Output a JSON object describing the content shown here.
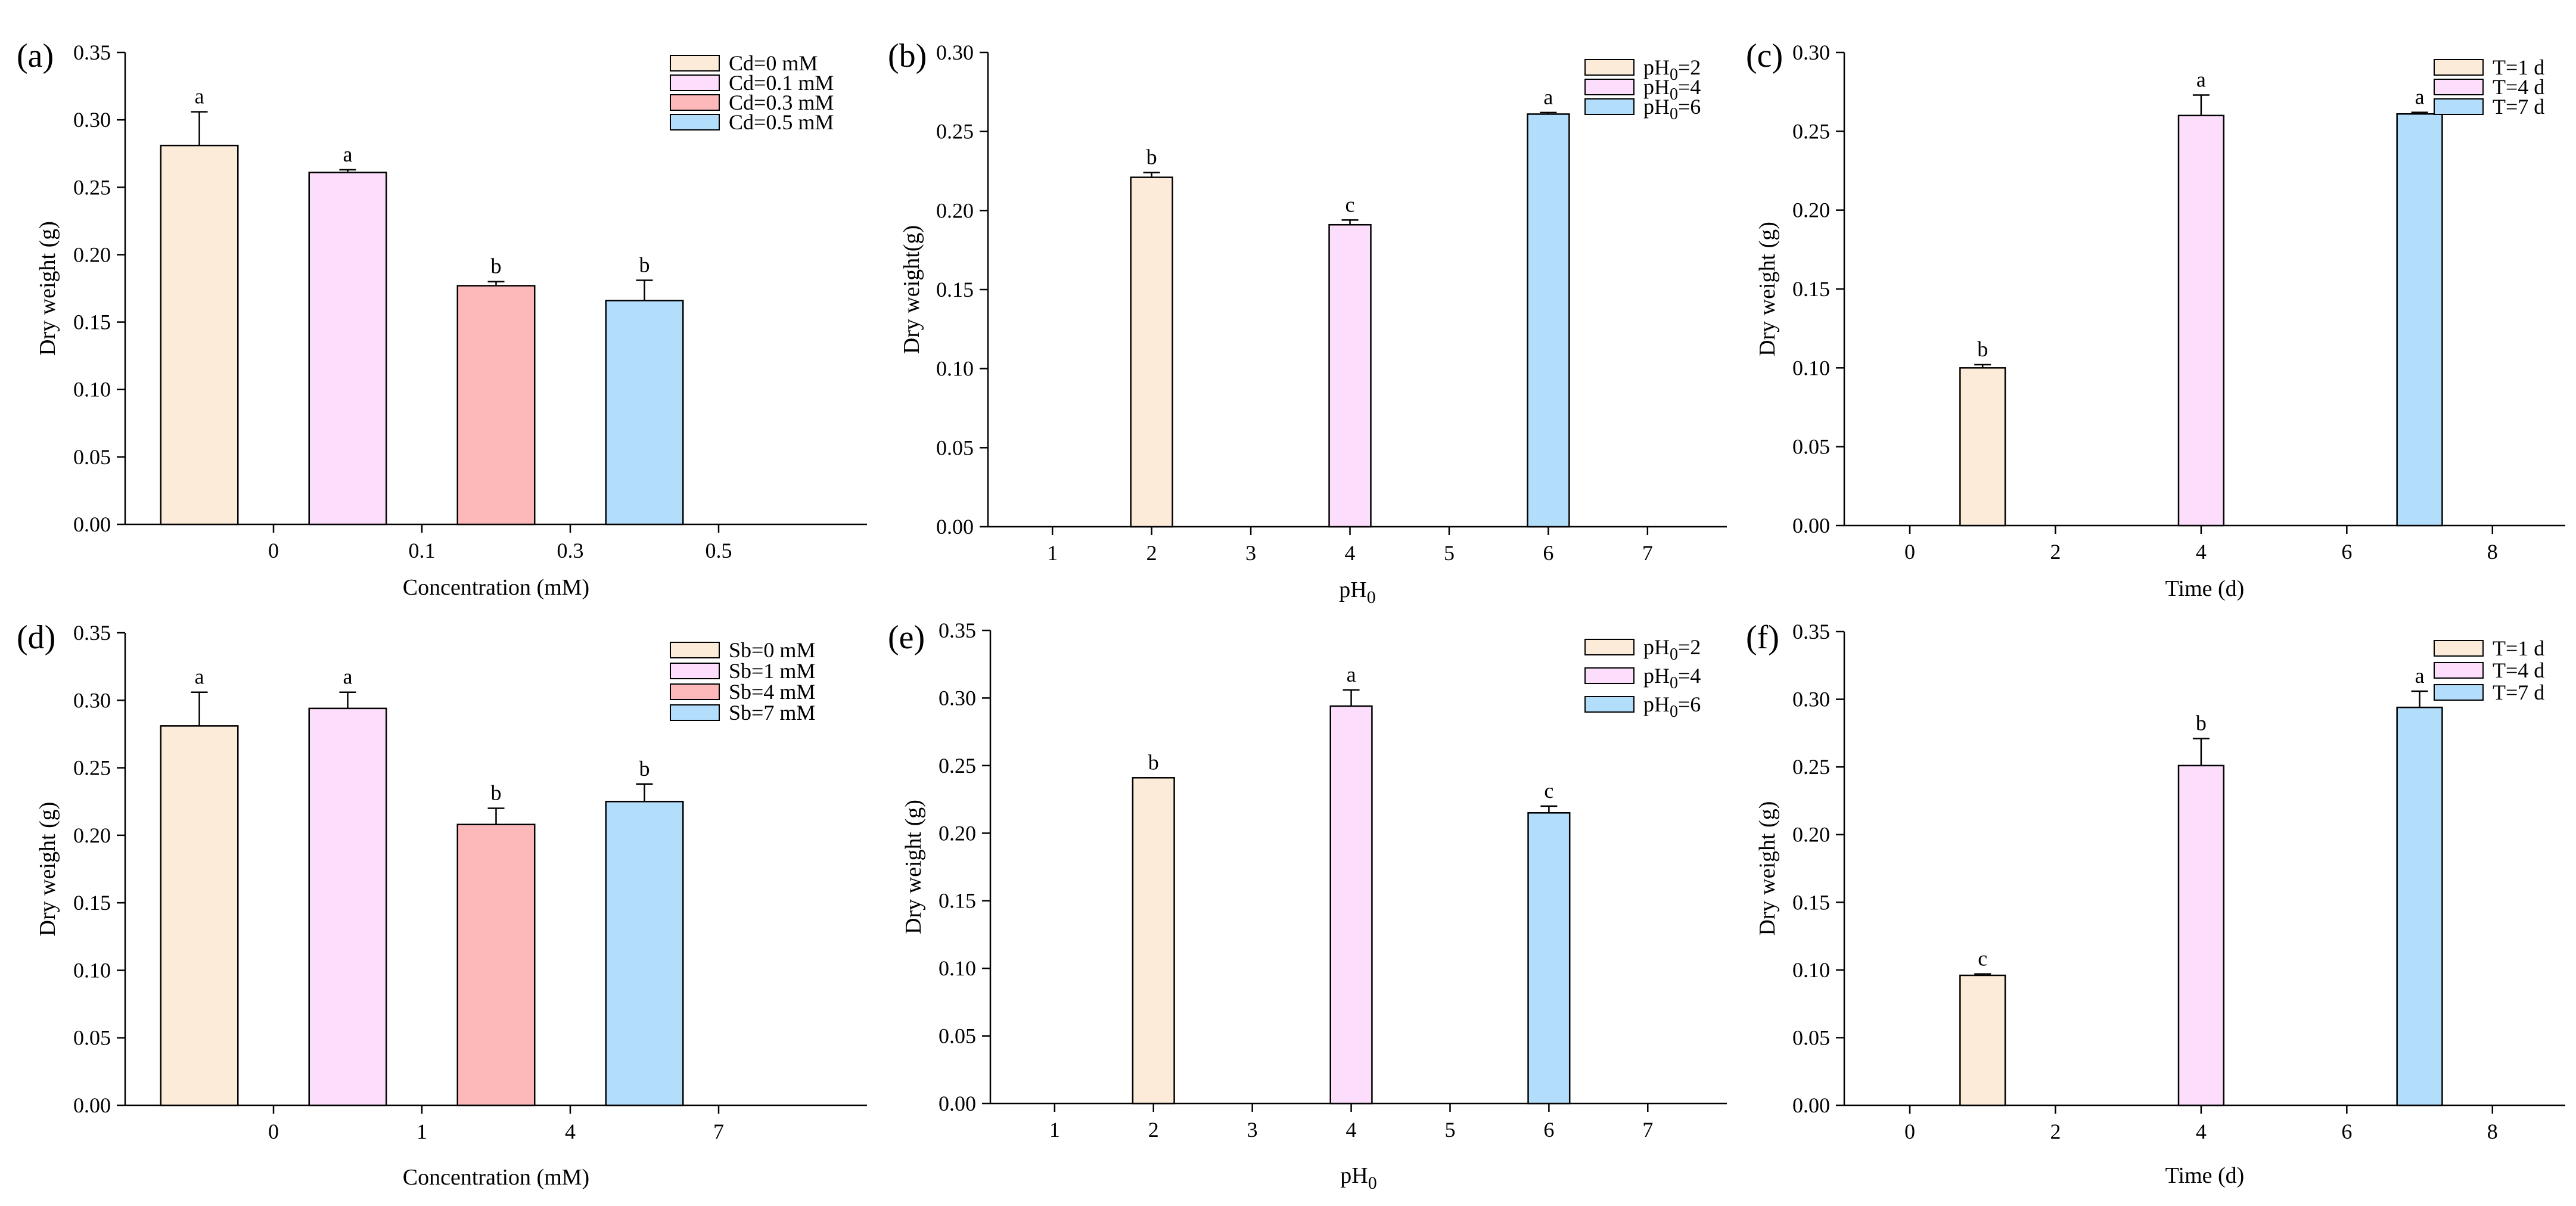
{
  "figure": {
    "description_free": true
  },
  "chart_data": [
    {
      "panel": "(a)",
      "type": "bar",
      "xlabel": "Concentration (mM)",
      "ylabel": "Dry weight (g)",
      "ylim": [
        0,
        0.35
      ],
      "yticks": [
        "0.00",
        "0.05",
        "0.10",
        "0.15",
        "0.20",
        "0.25",
        "0.30",
        "0.35"
      ],
      "x_scale": "categorical",
      "xticks": [
        {
          "label": "0",
          "pos": 0.5
        },
        {
          "label": "0.1",
          "pos": 1.5
        },
        {
          "label": "0.3",
          "pos": 2.5
        },
        {
          "label": "0.5",
          "pos": 3.5
        }
      ],
      "xlim": [
        -0.5,
        4.5
      ],
      "bars": [
        {
          "series": "Cd=0 mM",
          "pos": 0,
          "value": 0.281,
          "error": 0.025,
          "sig": "a",
          "color": "#FDEBD9"
        },
        {
          "series": "Cd=0.1 mM",
          "pos": 1,
          "value": 0.261,
          "error": 0.002,
          "sig": "a",
          "color": "#FCDDFC"
        },
        {
          "series": "Cd=0.3 mM",
          "pos": 2,
          "value": 0.177,
          "error": 0.003,
          "sig": "b",
          "color": "#FDB9B9"
        },
        {
          "series": "Cd=0.5 mM",
          "pos": 3,
          "value": 0.166,
          "error": 0.015,
          "sig": "b",
          "color": "#B2DDFB"
        }
      ],
      "legend": [
        {
          "pre": "Cd=0 mM",
          "sub": "",
          "post": "",
          "color": "#FDEBD9"
        },
        {
          "pre": "Cd=0.1 mM",
          "sub": "",
          "post": "",
          "color": "#FCDDFC"
        },
        {
          "pre": "Cd=0.3 mM",
          "sub": "",
          "post": "",
          "color": "#FDB9B9"
        },
        {
          "pre": "Cd=0.5 mM",
          "sub": "",
          "post": "",
          "color": "#B2DDFB"
        }
      ]
    },
    {
      "panel": "(b)",
      "type": "bar",
      "xlabel": "pH",
      "xlabel_sub": "0",
      "ylabel": "Dry weight(g)",
      "ylim": [
        0,
        0.3
      ],
      "yticks": [
        "0.00",
        "0.05",
        "0.10",
        "0.15",
        "0.20",
        "0.25",
        "0.30"
      ],
      "x_scale": "linear",
      "xticks": [
        {
          "label": "1",
          "pos": 1
        },
        {
          "label": "2",
          "pos": 2
        },
        {
          "label": "3",
          "pos": 3
        },
        {
          "label": "4",
          "pos": 4
        },
        {
          "label": "5",
          "pos": 5
        },
        {
          "label": "6",
          "pos": 6
        },
        {
          "label": "7",
          "pos": 7
        }
      ],
      "xlim": [
        0.35,
        7.8
      ],
      "bars": [
        {
          "series": "pH0=2",
          "pos": 2,
          "value": 0.221,
          "error": 0.003,
          "sig": "b",
          "color": "#FDEBD9"
        },
        {
          "series": "pH0=4",
          "pos": 4,
          "value": 0.191,
          "error": 0.003,
          "sig": "c",
          "color": "#FCDDFC"
        },
        {
          "series": "pH0=6",
          "pos": 6,
          "value": 0.261,
          "error": 0.001,
          "sig": "a",
          "color": "#B2DDFB"
        }
      ],
      "legend": [
        {
          "pre": "pH",
          "sub": "0",
          "post": "=2",
          "color": "#FDEBD9"
        },
        {
          "pre": "pH",
          "sub": "0",
          "post": "=4",
          "color": "#FCDDFC"
        },
        {
          "pre": "pH",
          "sub": "0",
          "post": "=6",
          "color": "#B2DDFB"
        }
      ]
    },
    {
      "panel": "(c)",
      "type": "bar",
      "xlabel": "Time (d)",
      "ylabel": "Dry weight (g)",
      "ylim": [
        0,
        0.3
      ],
      "yticks": [
        "0.00",
        "0.05",
        "0.10",
        "0.15",
        "0.20",
        "0.25",
        "0.30"
      ],
      "x_scale": "linear",
      "xticks": [
        {
          "label": "0",
          "pos": 0
        },
        {
          "label": "2",
          "pos": 2
        },
        {
          "label": "4",
          "pos": 4
        },
        {
          "label": "6",
          "pos": 6
        },
        {
          "label": "8",
          "pos": 8
        }
      ],
      "xlim": [
        -0.9,
        9.0
      ],
      "bars": [
        {
          "series": "T=1 d",
          "pos": 1,
          "value": 0.1,
          "error": 0.002,
          "sig": "b",
          "color": "#FDEBD9"
        },
        {
          "series": "T=4 d",
          "pos": 4,
          "value": 0.26,
          "error": 0.013,
          "sig": "a",
          "color": "#FCDDFC"
        },
        {
          "series": "T=7 d",
          "pos": 7,
          "value": 0.261,
          "error": 0.001,
          "sig": "a",
          "color": "#B2DDFB"
        }
      ],
      "legend": [
        {
          "pre": "T=1 d",
          "sub": "",
          "post": "",
          "color": "#FDEBD9"
        },
        {
          "pre": "T=4 d",
          "sub": "",
          "post": "",
          "color": "#FCDDFC"
        },
        {
          "pre": "T=7 d",
          "sub": "",
          "post": "",
          "color": "#B2DDFB"
        }
      ]
    },
    {
      "panel": "(d)",
      "type": "bar",
      "xlabel": "Concentration (mM)",
      "ylabel": "Dry weight (g)",
      "ylim": [
        0,
        0.35
      ],
      "yticks": [
        "0.00",
        "0.05",
        "0.10",
        "0.15",
        "0.20",
        "0.25",
        "0.30",
        "0.35"
      ],
      "x_scale": "categorical",
      "xticks": [
        {
          "label": "0",
          "pos": 0.5
        },
        {
          "label": "1",
          "pos": 1.5
        },
        {
          "label": "4",
          "pos": 2.5
        },
        {
          "label": "7",
          "pos": 3.5
        }
      ],
      "xlim": [
        -0.5,
        4.5
      ],
      "bars": [
        {
          "series": "Sb=0 mM",
          "pos": 0,
          "value": 0.281,
          "error": 0.025,
          "sig": "a",
          "color": "#FDEBD9"
        },
        {
          "series": "Sb=1 mM",
          "pos": 1,
          "value": 0.294,
          "error": 0.012,
          "sig": "a",
          "color": "#FCDDFC"
        },
        {
          "series": "Sb=4 mM",
          "pos": 2,
          "value": 0.208,
          "error": 0.012,
          "sig": "b",
          "color": "#FDB9B9"
        },
        {
          "series": "Sb=7 mM",
          "pos": 3,
          "value": 0.225,
          "error": 0.013,
          "sig": "b",
          "color": "#B2DDFB"
        }
      ],
      "legend": [
        {
          "pre": "Sb=0 mM",
          "sub": "",
          "post": "",
          "color": "#FDEBD9"
        },
        {
          "pre": "Sb=1 mM",
          "sub": "",
          "post": "",
          "color": "#FCDDFC"
        },
        {
          "pre": "Sb=4 mM",
          "sub": "",
          "post": "",
          "color": "#FDB9B9"
        },
        {
          "pre": "Sb=7 mM",
          "sub": "",
          "post": "",
          "color": "#B2DDFB"
        }
      ]
    },
    {
      "panel": "(e)",
      "type": "bar",
      "xlabel": "pH",
      "xlabel_sub": "0",
      "ylabel": "Dry weight (g)",
      "ylim": [
        0,
        0.35
      ],
      "yticks": [
        "0.00",
        "0.05",
        "0.10",
        "0.15",
        "0.20",
        "0.25",
        "0.30",
        "0.35"
      ],
      "x_scale": "linear",
      "xticks": [
        {
          "label": "1",
          "pos": 1
        },
        {
          "label": "2",
          "pos": 2
        },
        {
          "label": "3",
          "pos": 3
        },
        {
          "label": "4",
          "pos": 4
        },
        {
          "label": "5",
          "pos": 5
        },
        {
          "label": "6",
          "pos": 6
        },
        {
          "label": "7",
          "pos": 7
        }
      ],
      "xlim": [
        0.35,
        7.8
      ],
      "bars": [
        {
          "series": "pH0=2",
          "pos": 2,
          "value": 0.241,
          "error": 0.0,
          "sig": "b",
          "color": "#FDEBD9"
        },
        {
          "series": "pH0=4",
          "pos": 4,
          "value": 0.294,
          "error": 0.012,
          "sig": "a",
          "color": "#FCDDFC"
        },
        {
          "series": "pH0=6",
          "pos": 6,
          "value": 0.215,
          "error": 0.005,
          "sig": "c",
          "color": "#B2DDFB"
        }
      ],
      "legend": [
        {
          "pre": "pH",
          "sub": "0",
          "post": "=2",
          "color": "#FDEBD9"
        },
        {
          "pre": "pH",
          "sub": "0",
          "post": "=4",
          "color": "#FCDDFC"
        },
        {
          "pre": "pH",
          "sub": "0",
          "post": "=6",
          "color": "#B2DDFB"
        }
      ]
    },
    {
      "panel": "(f)",
      "type": "bar",
      "xlabel": "Time (d)",
      "ylabel": "Dry weight (g)",
      "ylim": [
        0,
        0.35
      ],
      "yticks": [
        "0.00",
        "0.05",
        "0.10",
        "0.15",
        "0.20",
        "0.25",
        "0.30",
        "0.35"
      ],
      "x_scale": "linear",
      "xticks": [
        {
          "label": "0",
          "pos": 0
        },
        {
          "label": "2",
          "pos": 2
        },
        {
          "label": "4",
          "pos": 4
        },
        {
          "label": "6",
          "pos": 6
        },
        {
          "label": "8",
          "pos": 8
        }
      ],
      "xlim": [
        -0.9,
        9.0
      ],
      "bars": [
        {
          "series": "T=1 d",
          "pos": 1,
          "value": 0.096,
          "error": 0.001,
          "sig": "c",
          "color": "#FDEBD9"
        },
        {
          "series": "T=4 d",
          "pos": 4,
          "value": 0.251,
          "error": 0.02,
          "sig": "b",
          "color": "#FCDDFC"
        },
        {
          "series": "T=7 d",
          "pos": 7,
          "value": 0.294,
          "error": 0.012,
          "sig": "a",
          "color": "#B2DDFB"
        }
      ],
      "legend": [
        {
          "pre": "T=1 d",
          "sub": "",
          "post": "",
          "color": "#FDEBD9"
        },
        {
          "pre": "T=4 d",
          "sub": "",
          "post": "",
          "color": "#FCDDFC"
        },
        {
          "pre": "T=7 d",
          "sub": "",
          "post": "",
          "color": "#B2DDFB"
        }
      ]
    }
  ]
}
